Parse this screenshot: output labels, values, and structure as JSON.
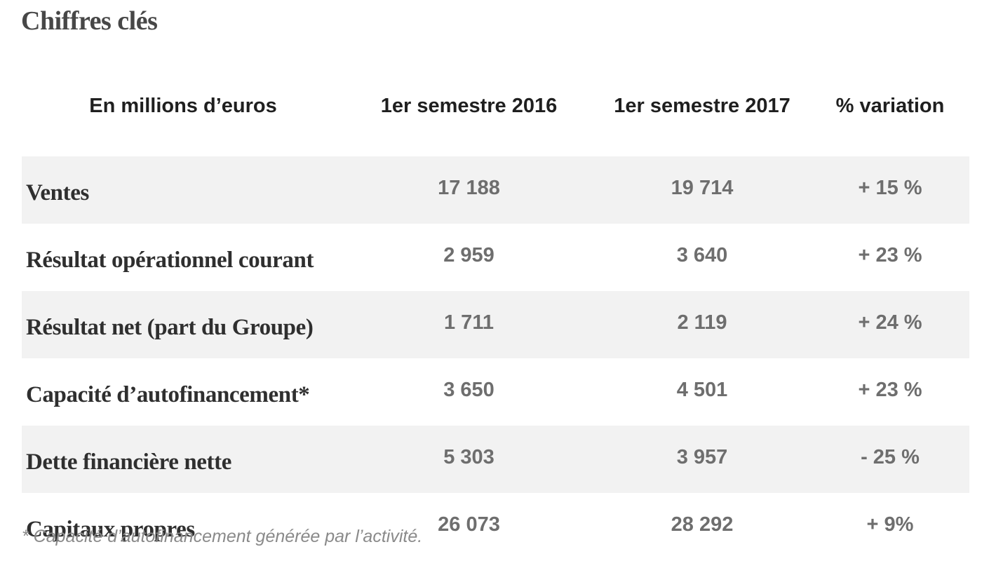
{
  "title": "Chiffres clés",
  "table": {
    "headers": [
      "En millions d’euros",
      "1er semestre 2016",
      "1er semestre 2017",
      "% variation"
    ],
    "rows": [
      {
        "label": "Ventes",
        "h1_2016": "17 188",
        "h1_2017": "19 714",
        "variation": "+ 15 %"
      },
      {
        "label": "Résultat opérationnel courant",
        "h1_2016": "2 959",
        "h1_2017": "3 640",
        "variation": "+ 23 %"
      },
      {
        "label": "Résultat net (part du Groupe)",
        "h1_2016": "1 711",
        "h1_2017": "2 119",
        "variation": "+ 24 %"
      },
      {
        "label": "Capacité d’autofinancement*",
        "h1_2016": "3 650",
        "h1_2017": "4 501",
        "variation": "+ 23 %"
      },
      {
        "label": "Dette financière nette",
        "h1_2016": "5 303",
        "h1_2017": "3 957",
        "variation": "- 25 %"
      },
      {
        "label": "Capitaux propres",
        "h1_2016": "26 073",
        "h1_2017": "28 292",
        "variation": "+ 9%"
      }
    ]
  },
  "footnote": "* Capacité d’autofinancement générée par l’activité."
}
